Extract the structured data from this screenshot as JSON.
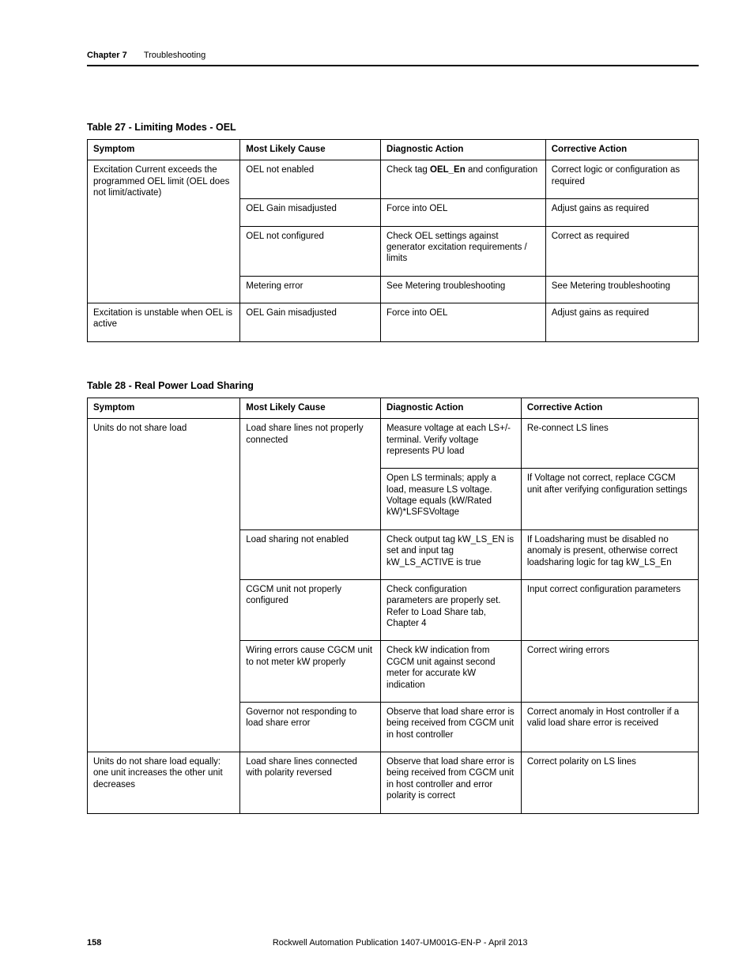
{
  "header": {
    "chapter_label": "Chapter 7",
    "chapter_title": "Troubleshooting"
  },
  "table27": {
    "caption": "Table 27 - Limiting Modes - OEL",
    "headers": [
      "Symptom",
      "Most Likely Cause",
      "Diagnostic Action",
      "Corrective Action"
    ],
    "rows": [
      {
        "symptom": "Excitation Current exceeds the programmed OEL limit (OEL does not limit/activate)",
        "symptom_rowspan": 4,
        "cause": "OEL not enabled",
        "diag_pre": "Check tag ",
        "diag_bold": "OEL_En",
        "diag_post": " and configuration",
        "corr": "Correct logic or configuration as required"
      },
      {
        "cause": "OEL Gain misadjusted",
        "diag": "Force into OEL",
        "corr": "Adjust gains as required"
      },
      {
        "cause": "OEL not configured",
        "diag": "Check OEL settings against generator excitation requirements / limits",
        "corr": "Correct as required"
      },
      {
        "cause": "Metering error",
        "diag": "See Metering troubleshooting",
        "corr": "See Metering troubleshooting"
      },
      {
        "symptom": "Excitation is unstable when OEL is active",
        "symptom_rowspan": 1,
        "cause": "OEL Gain misadjusted",
        "diag": "Force into OEL",
        "corr": "Adjust gains as required"
      }
    ]
  },
  "table28": {
    "caption": "Table 28 - Real Power Load Sharing",
    "headers": [
      "Symptom",
      "Most Likely Cause",
      "Diagnostic Action",
      "Corrective Action"
    ],
    "rows": [
      {
        "symptom": "Units do not share load",
        "symptom_rowspan": 6,
        "cause": "Load share lines not properly connected",
        "cause_rowspan": 2,
        "diag": "Measure voltage at each LS+/- terminal. Verify voltage represents PU load",
        "corr": "Re-connect LS lines"
      },
      {
        "diag": "Open LS terminals; apply a load, measure LS voltage.\nVoltage equals (kW/Rated kW)*LSFSVoltage",
        "corr": "If Voltage not correct, replace CGCM unit after verifying configuration settings"
      },
      {
        "cause": "Load sharing not enabled",
        "diag": "Check output tag kW_LS_EN is set and input tag kW_LS_ACTIVE is true",
        "corr": "If Loadsharing must be disabled no anomaly is present, otherwise correct loadsharing logic for tag kW_LS_En"
      },
      {
        "cause": "CGCM unit not properly configured",
        "diag": "Check configuration parameters are properly set. Refer to Load Share tab, Chapter 4",
        "corr": "Input correct configuration parameters"
      },
      {
        "cause": "Wiring errors cause CGCM unit to not meter kW properly",
        "diag": "Check kW indication from CGCM unit against second meter for accurate kW indication",
        "corr": "Correct wiring errors"
      },
      {
        "cause": "Governor not responding to load share error",
        "diag": "Observe that load share error is being received from CGCM unit in host controller",
        "corr": "Correct anomaly in Host controller if a valid load share error is received"
      },
      {
        "symptom": "Units do not share load equally: one unit increases the other unit decreases",
        "symptom_rowspan": 1,
        "cause": "Load share lines connected with polarity reversed",
        "diag": "Observe that load share error is being received from CGCM unit in host controller and error polarity is correct",
        "corr": "Correct polarity on LS lines"
      }
    ]
  },
  "footer": {
    "page_number": "158",
    "publication": "Rockwell Automation Publication 1407-UM001G-EN-P - April 2013"
  }
}
